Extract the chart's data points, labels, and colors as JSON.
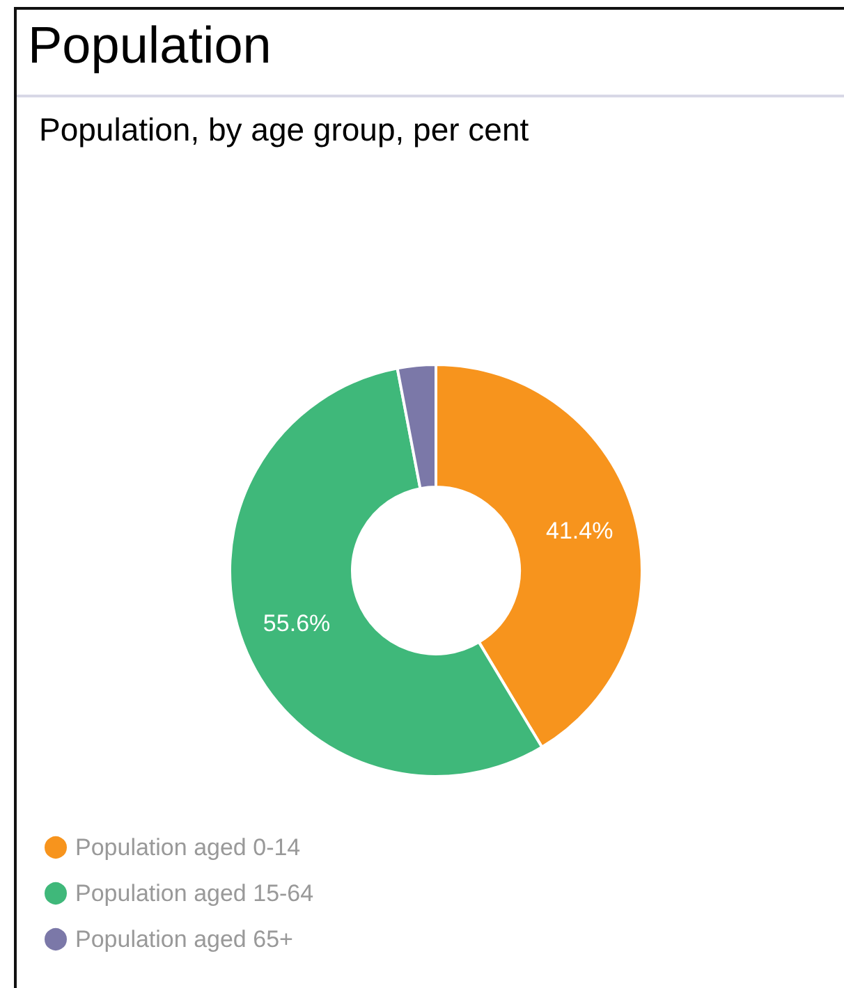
{
  "chart_data": {
    "type": "donut",
    "title": "Population",
    "subtitle": "Population, by age group, per cent",
    "categories": [
      "Population aged 0-14",
      "Population aged 15-64",
      "Population aged 65+"
    ],
    "values": [
      41.4,
      55.6,
      3.0
    ],
    "colors": [
      "#f7941d",
      "#3fb87a",
      "#7b78a8"
    ],
    "value_labels": [
      "41.4%",
      "55.6%",
      null
    ],
    "legend": "bottom left"
  }
}
